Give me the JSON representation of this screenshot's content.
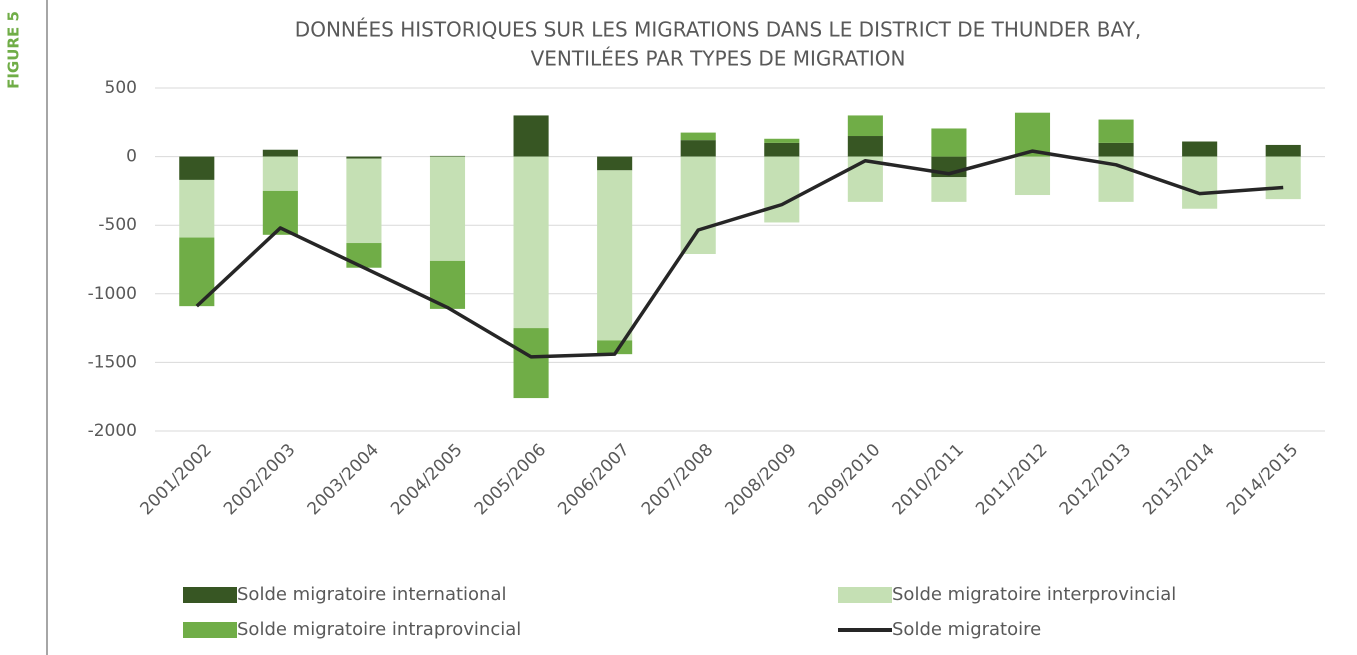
{
  "chart_data": {
    "type": "stacked_bar_line",
    "figure_label": "FIGURE 5",
    "title": [
      "DONNÉES HISTORIQUES SUR LES MIGRATIONS DANS LE DISTRICT DE THUNDER BAY,",
      "VENTILÉES PAR TYPES DE MIGRATION"
    ],
    "categories": [
      "2001/2002",
      "2002/2003",
      "2003/2004",
      "2004/2005",
      "2005/2006",
      "2006/2007",
      "2007/2008",
      "2008/2009",
      "2009/2010",
      "2010/2011",
      "2011/2012",
      "2012/2013",
      "2013/2014",
      "2014/2015"
    ],
    "series": [
      {
        "name": "Solde migratoire international",
        "type": "bar",
        "color": "#375623",
        "values": [
          -170,
          50,
          -15,
          5,
          300,
          -100,
          120,
          100,
          150,
          -150,
          0,
          100,
          110,
          85
        ]
      },
      {
        "name": "Solde migratoire interprovincial",
        "type": "bar",
        "color": "#c5e0b4",
        "values": [
          -420,
          -250,
          -615,
          -760,
          -1250,
          -1240,
          -710,
          -480,
          -330,
          -180,
          -280,
          -330,
          -380,
          -310
        ]
      },
      {
        "name": "Solde migratoire intraprovincial",
        "type": "bar",
        "color": "#70ad47",
        "values": [
          -500,
          -320,
          -180,
          -350,
          -510,
          -100,
          55,
          30,
          150,
          205,
          320,
          170,
          0,
          0
        ]
      },
      {
        "name": "Solde migratoire",
        "type": "line",
        "color": "#262626",
        "values": [
          -1090,
          -520,
          -810,
          -1100,
          -1460,
          -1440,
          -535,
          -350,
          -30,
          -125,
          40,
          -60,
          -270,
          -225
        ]
      }
    ],
    "ylim": [
      -2000,
      500
    ],
    "yticks": [
      500,
      0,
      -500,
      -1000,
      -1500,
      -2000
    ],
    "grid": true
  }
}
